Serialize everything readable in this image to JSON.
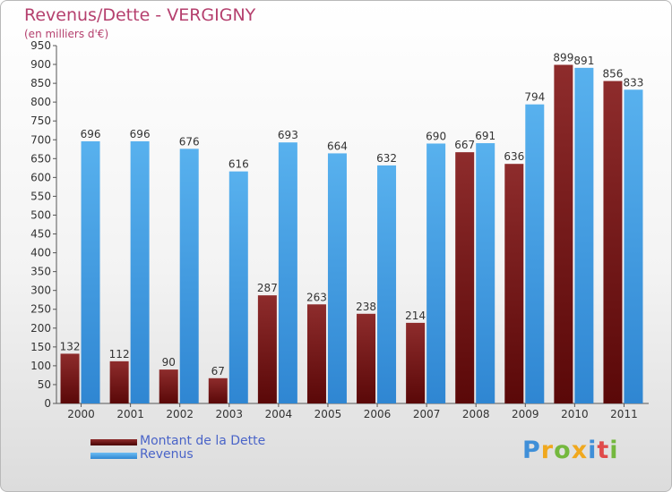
{
  "chart_data": {
    "type": "bar",
    "title": "Revenus/Dette - VERGIGNY",
    "subtitle": "(en milliers d'€)",
    "categories": [
      "2000",
      "2001",
      "2002",
      "2003",
      "2004",
      "2005",
      "2006",
      "2007",
      "2008",
      "2009",
      "2010",
      "2011"
    ],
    "series": [
      {
        "name": "Montant de la Dette",
        "values": [
          132,
          112,
          90,
          67,
          287,
          263,
          238,
          214,
          667,
          636,
          899,
          856
        ],
        "color": "#7a1c1c"
      },
      {
        "name": "Revenus",
        "values": [
          696,
          696,
          676,
          616,
          693,
          664,
          632,
          690,
          691,
          794,
          891,
          833
        ],
        "color": "#4ea6e6"
      }
    ],
    "ylim": [
      0,
      950
    ],
    "ytick_step": 50,
    "grid": false,
    "legend_position": "bottom-left"
  },
  "logo": {
    "text": "Proxiti"
  }
}
